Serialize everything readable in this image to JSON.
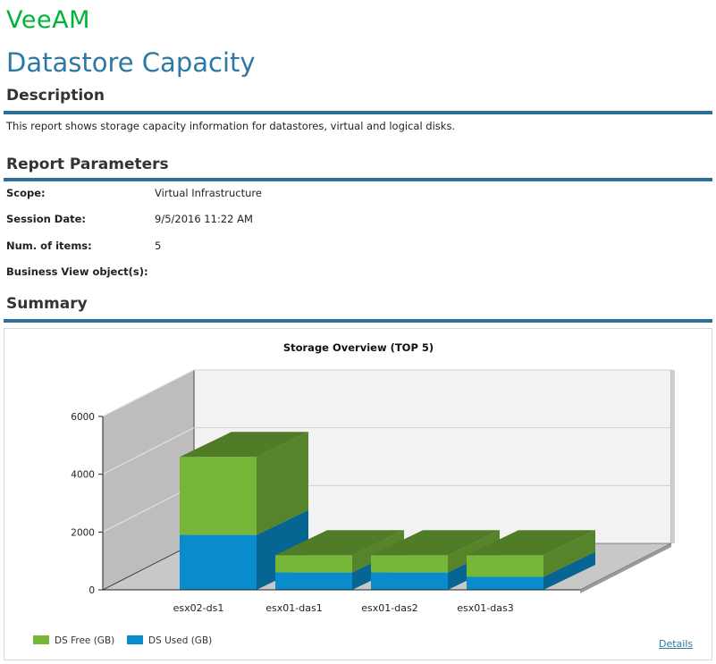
{
  "brand": {
    "logo_text": "VeeAM"
  },
  "page": {
    "title": "Datastore Capacity"
  },
  "description": {
    "heading": "Description",
    "text": "This report shows storage capacity information for datastores, virtual and logical disks."
  },
  "parameters": {
    "heading": "Report Parameters",
    "rows": [
      {
        "label": "Scope:",
        "value": "Virtual Infrastructure"
      },
      {
        "label": "Session Date:",
        "value": "9/5/2016 11:22 AM"
      },
      {
        "label": "Num. of items:",
        "value": "5"
      },
      {
        "label": "Business View object(s):",
        "value": ""
      }
    ]
  },
  "summary": {
    "heading": "Summary",
    "details_link": "Details"
  },
  "colors": {
    "free": "#76b73a",
    "used": "#0a8ccc",
    "accent": "#2e78a6",
    "rule": "#2e6f98"
  },
  "chart_data": {
    "type": "bar",
    "stacked": true,
    "three_d": true,
    "title": "Storage Overview (TOP 5)",
    "categories": [
      "esx02-ds1",
      "esx01-das1",
      "esx01-das2",
      "esx01-das3"
    ],
    "series": [
      {
        "name": "DS Used (GB)",
        "values": [
          1900,
          600,
          600,
          450
        ]
      },
      {
        "name": "DS Free (GB)",
        "values": [
          2700,
          600,
          600,
          750
        ]
      }
    ],
    "y_ticks": [
      0,
      2000,
      4000,
      6000
    ],
    "ylim": [
      0,
      6000
    ],
    "legend_position": "bottom-left",
    "grid": true
  }
}
